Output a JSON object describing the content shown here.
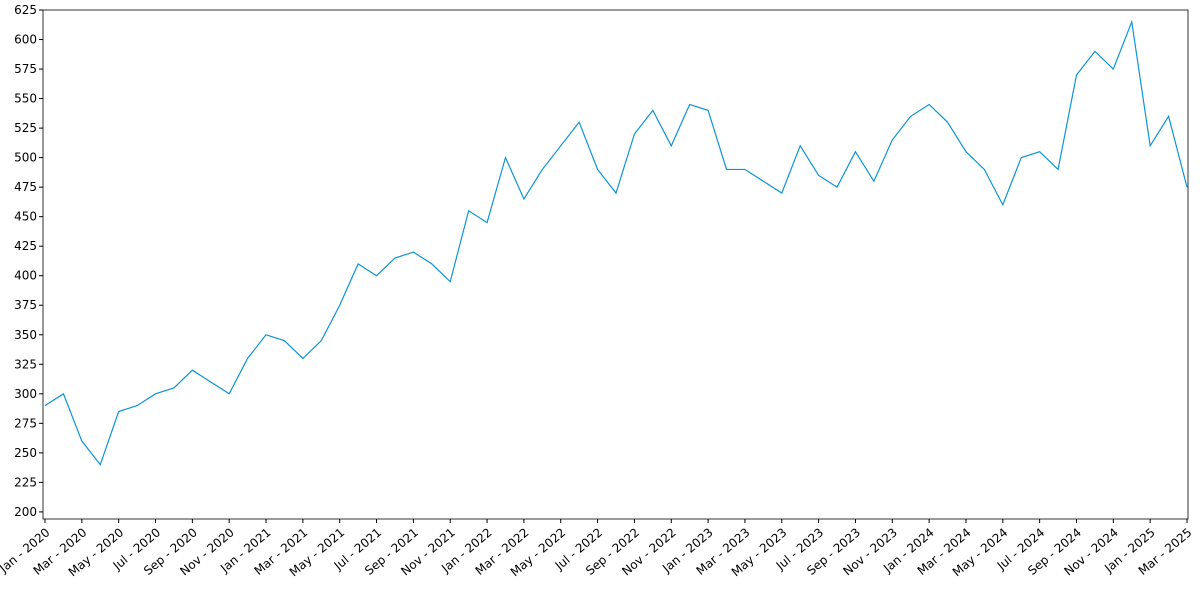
{
  "chart_data": {
    "type": "line",
    "x": [
      "2020-01",
      "2020-02",
      "2020-03",
      "2020-04",
      "2020-05",
      "2020-06",
      "2020-07",
      "2020-08",
      "2020-09",
      "2020-10",
      "2020-11",
      "2020-12",
      "2021-01",
      "2021-02",
      "2021-03",
      "2021-04",
      "2021-05",
      "2021-06",
      "2021-07",
      "2021-08",
      "2021-09",
      "2021-10",
      "2021-11",
      "2021-12",
      "2022-01",
      "2022-02",
      "2022-03",
      "2022-04",
      "2022-05",
      "2022-06",
      "2022-07",
      "2022-08",
      "2022-09",
      "2022-10",
      "2022-11",
      "2022-12",
      "2023-01",
      "2023-02",
      "2023-03",
      "2023-04",
      "2023-05",
      "2023-06",
      "2023-07",
      "2023-08",
      "2023-09",
      "2023-10",
      "2023-11",
      "2023-12",
      "2024-01",
      "2024-02",
      "2024-03",
      "2024-04",
      "2024-05",
      "2024-06",
      "2024-07",
      "2024-08",
      "2024-09",
      "2024-10",
      "2024-11",
      "2024-12",
      "2025-01",
      "2025-02",
      "2025-03"
    ],
    "series": [
      {
        "color": "#0d94d6",
        "values": [
          290,
          300,
          260,
          240,
          285,
          290,
          300,
          305,
          320,
          310,
          300,
          330,
          350,
          345,
          330,
          345,
          375,
          410,
          400,
          415,
          420,
          410,
          395,
          455,
          445,
          500,
          465,
          490,
          510,
          530,
          490,
          470,
          520,
          540,
          510,
          545,
          540,
          490,
          490,
          480,
          470,
          510,
          485,
          475,
          505,
          480,
          515,
          535,
          545,
          530,
          505,
          490,
          460,
          500,
          505,
          490,
          570,
          590,
          575,
          615,
          510,
          535,
          475
        ]
      }
    ],
    "ylim": [
      194,
      625
    ],
    "yticks": [
      200,
      225,
      250,
      275,
      300,
      325,
      350,
      375,
      400,
      425,
      450,
      475,
      500,
      525,
      550,
      575,
      600,
      625
    ],
    "xticks": [
      {
        "value": "2020-01",
        "label": "Jan - 2020"
      },
      {
        "value": "2020-03",
        "label": "Mar - 2020"
      },
      {
        "value": "2020-05",
        "label": "May - 2020"
      },
      {
        "value": "2020-07",
        "label": "Jul - 2020"
      },
      {
        "value": "2020-09",
        "label": "Sep - 2020"
      },
      {
        "value": "2020-11",
        "label": "Nov - 2020"
      },
      {
        "value": "2021-01",
        "label": "Jan - 2021"
      },
      {
        "value": "2021-03",
        "label": "Mar - 2021"
      },
      {
        "value": "2021-05",
        "label": "May - 2021"
      },
      {
        "value": "2021-07",
        "label": "Jul - 2021"
      },
      {
        "value": "2021-09",
        "label": "Sep - 2021"
      },
      {
        "value": "2021-11",
        "label": "Nov - 2021"
      },
      {
        "value": "2022-01",
        "label": "Jan - 2022"
      },
      {
        "value": "2022-03",
        "label": "Mar - 2022"
      },
      {
        "value": "2022-05",
        "label": "May - 2022"
      },
      {
        "value": "2022-07",
        "label": "Jul - 2022"
      },
      {
        "value": "2022-09",
        "label": "Sep - 2022"
      },
      {
        "value": "2022-11",
        "label": "Nov - 2022"
      },
      {
        "value": "2023-01",
        "label": "Jan - 2023"
      },
      {
        "value": "2023-03",
        "label": "Mar - 2023"
      },
      {
        "value": "2023-05",
        "label": "May - 2023"
      },
      {
        "value": "2023-07",
        "label": "Jul - 2023"
      },
      {
        "value": "2023-09",
        "label": "Sep - 2023"
      },
      {
        "value": "2023-11",
        "label": "Nov - 2023"
      },
      {
        "value": "2024-01",
        "label": "Jan - 2024"
      },
      {
        "value": "2024-03",
        "label": "Mar - 2024"
      },
      {
        "value": "2024-05",
        "label": "May - 2024"
      },
      {
        "value": "2024-07",
        "label": "Jul - 2024"
      },
      {
        "value": "2024-09",
        "label": "Sep - 2024"
      },
      {
        "value": "2024-11",
        "label": "Nov - 2024"
      },
      {
        "value": "2025-01",
        "label": "Jan - 2025"
      },
      {
        "value": "2025-03",
        "label": "Mar - 2025"
      }
    ]
  }
}
